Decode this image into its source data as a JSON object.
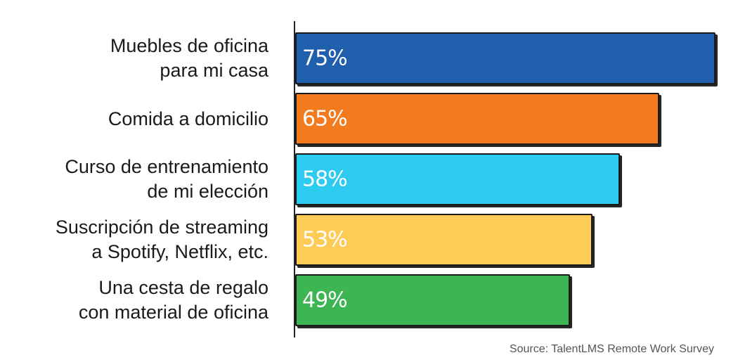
{
  "chart_data": {
    "type": "bar",
    "orientation": "horizontal",
    "categories": [
      [
        "Muebles de oficina",
        "para mi casa"
      ],
      [
        "Comida a domicilio"
      ],
      [
        "Curso de entrenamiento",
        "de mi elección"
      ],
      [
        "Suscripción de streaming",
        "a Spotify, Netflix, etc."
      ],
      [
        "Una cesta de regalo",
        "con material de oficina"
      ]
    ],
    "values": [
      75,
      65,
      58,
      53,
      49
    ],
    "value_labels": [
      "75%",
      "65%",
      "58%",
      "53%",
      "49%"
    ],
    "colors": [
      "#1f5fad",
      "#f47a20",
      "#2ecbf0",
      "#ffcb57",
      "#3db552"
    ],
    "xlim": [
      0,
      75
    ],
    "title": "",
    "xlabel": "",
    "ylabel": "",
    "grid": false,
    "legend": "none"
  },
  "source": "Source: TalentLMS Remote Work Survey"
}
